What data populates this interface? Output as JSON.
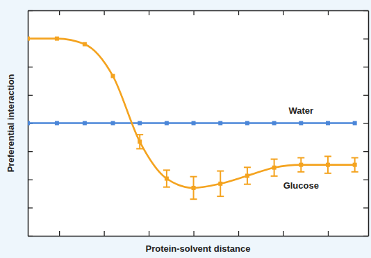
{
  "chart_data": {
    "type": "line",
    "x_label": "Protein-solvent distance",
    "y_label": "Preferential interaction",
    "xlim": [
      0.3,
      7.9
    ],
    "ylim": [
      -4,
      4
    ],
    "xticks": [
      1,
      2,
      3,
      4,
      5,
      6,
      7
    ],
    "yticks": [
      -4,
      -3,
      -2,
      -1,
      0,
      1,
      2,
      3,
      4
    ],
    "tick_labels": false,
    "grid": false,
    "x": [
      0.3,
      0.95,
      1.57,
      2.2,
      2.8,
      3.4,
      4.0,
      4.6,
      5.2,
      5.8,
      6.4,
      7.0,
      7.6
    ],
    "series": [
      {
        "name": "Water",
        "color": "#4a86d8",
        "marker": "square",
        "line_style": "solid",
        "values": [
          0,
          0,
          0,
          0,
          0,
          0,
          0,
          0,
          0,
          0,
          0,
          0,
          0
        ]
      },
      {
        "name": "Glucose",
        "color": "#f4a31f",
        "marker": "square",
        "line_style": "solid",
        "values": [
          3.0,
          3.0,
          2.8,
          1.67,
          -0.66,
          -1.97,
          -2.3,
          -2.15,
          -1.87,
          -1.58,
          -1.48,
          -1.48,
          -1.48
        ],
        "errors": [
          null,
          null,
          null,
          null,
          0.25,
          0.3,
          0.4,
          0.45,
          0.3,
          0.3,
          0.25,
          0.3,
          0.25
        ]
      }
    ]
  }
}
